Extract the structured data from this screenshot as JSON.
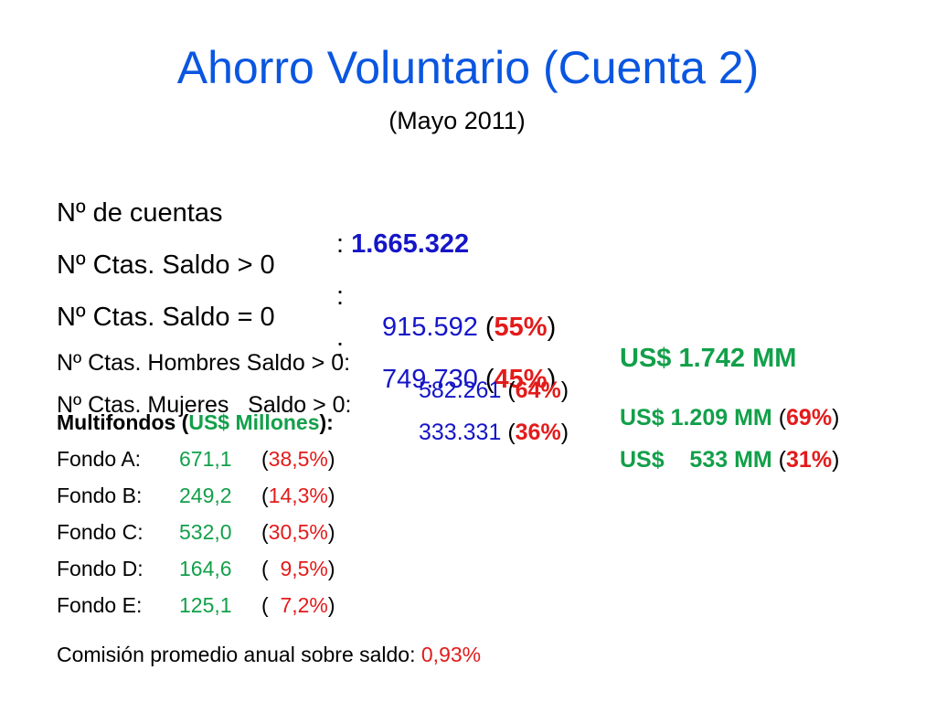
{
  "title": "Ahorro Voluntario (Cuenta 2)",
  "subtitle": "(Mayo 2011)",
  "rows": {
    "cuentas": {
      "label": "Nº de cuentas",
      "colon": ":",
      "value": "1.665.322"
    },
    "saldo_pos": {
      "label": "Nº Ctas. Saldo > 0",
      "colon": ":",
      "value": "915.592",
      "pct": "55%",
      "usd": "US$ 1.742 MM"
    },
    "saldo_cero": {
      "label": "Nº Ctas. Saldo = 0",
      "colon": ":",
      "value": "749.730",
      "pct": "45%"
    },
    "hombres": {
      "label": "Nº Ctas. Hombres Saldo > 0:",
      "value": "582.261",
      "pct": "64%",
      "usd": "US$ 1.209 MM",
      "usd_pct": "69%"
    },
    "mujeres": {
      "label": "Nº Ctas. Mujeres   Saldo > 0:",
      "value": "333.331",
      "pct": "36%",
      "usd": "US$    533 MM",
      "usd_pct": "31%"
    }
  },
  "multifondos": {
    "heading_prefix": "Multifondos (",
    "heading_unit": "US$ Millones",
    "heading_suffix": "):",
    "fondos": [
      {
        "label": "Fondo A:",
        "value": "671,1",
        "pct": "38,5%"
      },
      {
        "label": "Fondo B:",
        "value": "249,2",
        "pct": "14,3%"
      },
      {
        "label": "Fondo C:",
        "value": "532,0",
        "pct": "30,5%"
      },
      {
        "label": "Fondo D:",
        "value": "164,6",
        "pct": "  9,5%"
      },
      {
        "label": "Fondo E:",
        "value": "125,1",
        "pct": "  7,2%"
      }
    ]
  },
  "comision": {
    "label": "Comisión promedio anual sobre saldo:",
    "value": "0,93%"
  },
  "colors": {
    "title": "#0a56e0",
    "blue": "#1515c8",
    "red": "#e31b1b",
    "green": "#12a04a"
  }
}
